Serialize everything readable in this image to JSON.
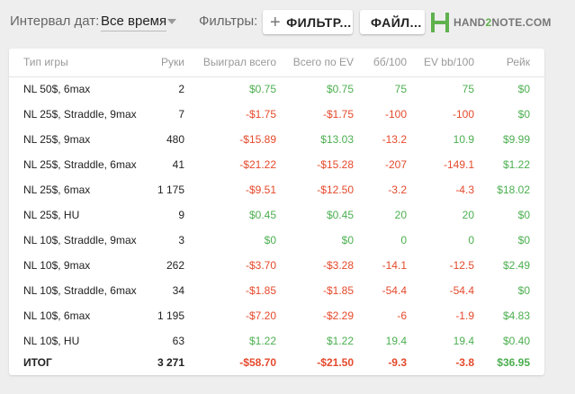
{
  "toolbar": {
    "date_label": "Интервал дат:",
    "date_value": "Все время",
    "filters_label": "Фильтры:",
    "filter_button": "ФИЛЬТР...",
    "files_button": "ФАЙЛ...",
    "logo_text_a": "HAND",
    "logo_text_b": "2",
    "logo_text_c": "NOTE.COM"
  },
  "colors": {
    "positive": "#4caf50",
    "negative": "#e5492c",
    "brand": "#5fb14e"
  },
  "table": {
    "headers": [
      "Тип игры",
      "Руки",
      "Выиграл всего",
      "Всего по EV",
      "бб/100",
      "EV bb/100",
      "Рейк"
    ],
    "rows": [
      [
        "NL 50$, 6max",
        "2",
        "$0.75",
        "$0.75",
        "75",
        "75",
        "$0"
      ],
      [
        "NL 25$, Straddle, 9max",
        "7",
        "-$1.75",
        "-$1.75",
        "-100",
        "-100",
        "$0"
      ],
      [
        "NL 25$, 9max",
        "480",
        "-$15.89",
        "$13.03",
        "-13.2",
        "10.9",
        "$9.99"
      ],
      [
        "NL 25$, Straddle, 6max",
        "41",
        "-$21.22",
        "-$15.28",
        "-207",
        "-149.1",
        "$1.22"
      ],
      [
        "NL 25$, 6max",
        "1 175",
        "-$9.51",
        "-$12.50",
        "-3.2",
        "-4.3",
        "$18.02"
      ],
      [
        "NL 25$, HU",
        "9",
        "$0.45",
        "$0.45",
        "20",
        "20",
        "$0"
      ],
      [
        "NL 10$, Straddle, 9max",
        "3",
        "$0",
        "$0",
        "0",
        "0",
        "$0"
      ],
      [
        "NL 10$, 9max",
        "262",
        "-$3.70",
        "-$3.28",
        "-14.1",
        "-12.5",
        "$2.49"
      ],
      [
        "NL 10$, Straddle, 6max",
        "34",
        "-$1.85",
        "-$1.85",
        "-54.4",
        "-54.4",
        "$0"
      ],
      [
        "NL 10$, 6max",
        "1 195",
        "-$7.20",
        "-$2.29",
        "-6",
        "-1.9",
        "$4.83"
      ],
      [
        "NL 10$, HU",
        "63",
        "$1.22",
        "$1.22",
        "19.4",
        "19.4",
        "$0.40"
      ]
    ],
    "total": [
      "ИТОГ",
      "3 271",
      "-$58.70",
      "-$21.50",
      "-9.3",
      "-3.8",
      "$36.95"
    ]
  }
}
